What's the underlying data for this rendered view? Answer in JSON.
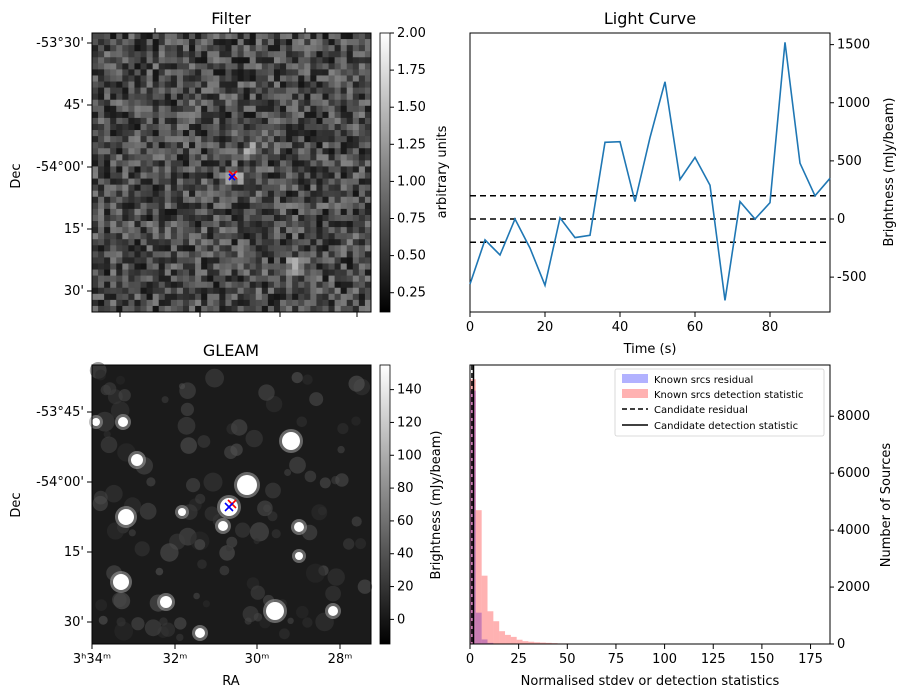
{
  "chart_data": [
    {
      "type": "heatmap",
      "title": "Filter",
      "ylabel": "Dec",
      "y_ticks": [
        "-53°30'",
        "45'",
        "-54°00'",
        "15'",
        "30'"
      ],
      "colorbar": {
        "label": "arbitrary units",
        "range": [
          0.12,
          2.0
        ],
        "ticks": [
          "0.25",
          "0.50",
          "0.75",
          "1.00",
          "1.25",
          "1.50",
          "1.75",
          "2.00"
        ]
      },
      "markers": [
        "red x",
        "blue x"
      ]
    },
    {
      "type": "line",
      "title": "Light Curve",
      "xlabel": "Time (s)",
      "ylabel": "Brightness (mJy/beam)",
      "xlim": [
        0,
        96
      ],
      "ylim": [
        -800,
        1600
      ],
      "x_ticks": [
        "0",
        "20",
        "40",
        "60",
        "80"
      ],
      "y_ticks": [
        "-500",
        "0",
        "500",
        "1000",
        "1500"
      ],
      "x": [
        0,
        4,
        8,
        12,
        16,
        20,
        24,
        28,
        32,
        36,
        40,
        44,
        48,
        52,
        56,
        60,
        64,
        68,
        72,
        76,
        80,
        84,
        88,
        92,
        96
      ],
      "values": [
        -560,
        -180,
        -310,
        0,
        -250,
        -570,
        10,
        -160,
        -140,
        660,
        665,
        150,
        700,
        1180,
        340,
        530,
        290,
        -700,
        150,
        0,
        140,
        1520,
        480,
        200,
        350
      ],
      "series_color": "#1f77b4",
      "thresholds": [
        200,
        0,
        -200
      ]
    },
    {
      "type": "heatmap",
      "title": "GLEAM",
      "xlabel": "RA",
      "ylabel": "Dec",
      "x_ticks": [
        "3ʰ34ᵐ",
        "32ᵐ",
        "30ᵐ",
        "28ᵐ"
      ],
      "y_ticks": [
        "-53°45'",
        "-54°00'",
        "15'",
        "30'"
      ],
      "colorbar": {
        "label": "Brightness (mJy/beam)",
        "range": [
          -15,
          155
        ],
        "ticks": [
          "0",
          "20",
          "40",
          "60",
          "80",
          "100",
          "120",
          "140"
        ]
      },
      "markers": [
        "red x",
        "blue x"
      ]
    },
    {
      "type": "bar",
      "xlabel": "Normalised stdev or detection statistics",
      "ylabel": "Number of Sources",
      "xlim": [
        0,
        185
      ],
      "ylim": [
        0,
        9800
      ],
      "x_ticks": [
        "0",
        "25",
        "50",
        "75",
        "100",
        "125",
        "150",
        "175"
      ],
      "y_ticks": [
        "0",
        "2000",
        "4000",
        "6000",
        "8000"
      ],
      "bin_width": 3,
      "series": [
        {
          "name": "Known srcs residual",
          "color": "#0000ff",
          "values": [
            8900,
            1100,
            160,
            40,
            10,
            5
          ]
        },
        {
          "name": "Known srcs detection statistic",
          "color": "#ff0000",
          "values": [
            9300,
            4700,
            2400,
            1150,
            800,
            450,
            320,
            250,
            150,
            100,
            80,
            60,
            50,
            40,
            30,
            20,
            20,
            15,
            10,
            8,
            6,
            5,
            4,
            3,
            3,
            2,
            2,
            2,
            2,
            1
          ]
        }
      ],
      "legend": {
        "position": "top-right",
        "entries": [
          "Known srcs residual",
          "Known srcs detection statistic",
          "Candidate residual",
          "Candidate detection statistic"
        ]
      },
      "candidate_residual": 1.0,
      "candidate_detection_statistic": 1.8
    }
  ]
}
